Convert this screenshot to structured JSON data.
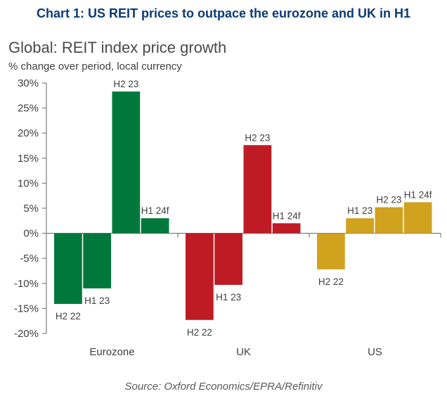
{
  "figure_title": "Chart 1: US REIT prices to outpace the eurozone and UK in H1",
  "source": "Source: Oxford Economics/EPRA/Refinitiv",
  "chart_data": {
    "type": "bar",
    "title": "Global: REIT index price growth",
    "subtitle": "% change over period, local currency",
    "xlabel": "",
    "ylabel": "",
    "ylim": [
      -20,
      30
    ],
    "yticks": [
      30,
      25,
      20,
      15,
      10,
      5,
      0,
      -5,
      -10,
      -15,
      -20
    ],
    "ytick_labels": [
      "30%",
      "25%",
      "20%",
      "15%",
      "10%",
      "5%",
      "0%",
      "-5%",
      "-10%",
      "-15%",
      "-20%"
    ],
    "grid": false,
    "legend": "none",
    "categories": [
      "Eurozone",
      "UK",
      "US"
    ],
    "periods": [
      "H2 22",
      "H1 23",
      "H2 23",
      "H1 24f"
    ],
    "series": [
      {
        "name": "Eurozone",
        "color": "#00783c",
        "values": [
          -14.1,
          -11.0,
          28.3,
          3.0
        ]
      },
      {
        "name": "UK",
        "color": "#be1b24",
        "values": [
          -17.3,
          -10.3,
          17.6,
          2.0
        ]
      },
      {
        "name": "US",
        "color": "#d1a21e",
        "values": [
          -7.2,
          3.0,
          5.2,
          6.2
        ]
      }
    ]
  }
}
